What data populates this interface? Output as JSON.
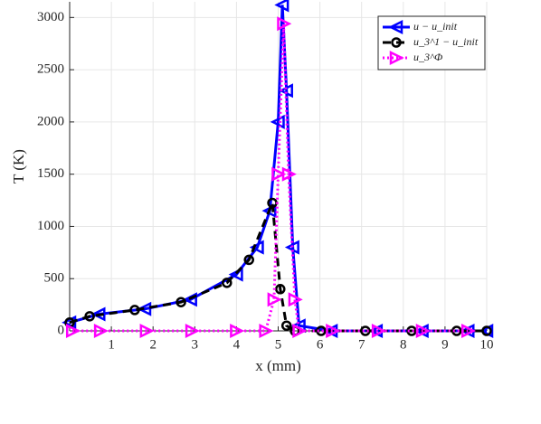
{
  "chart_data": {
    "type": "line",
    "xlabel": "x (mm)",
    "ylabel": "T (K)",
    "xlim": [
      0,
      10
    ],
    "xticks": [
      1,
      2,
      3,
      4,
      5,
      6,
      7,
      8,
      9,
      10
    ],
    "ylim": [
      0,
      3150
    ],
    "yticks": [
      0,
      500,
      1000,
      1500,
      2000,
      2500,
      3000
    ],
    "grid": true,
    "legend": "upper right",
    "series": [
      {
        "name": "u − u_init",
        "color": "#0000ff",
        "marker": "triangle-left",
        "dash": "solid",
        "x": [
          0,
          0.7,
          1.8,
          2.9,
          4.0,
          4.5,
          4.8,
          5.0,
          5.1,
          5.2,
          5.35,
          5.5,
          6.27,
          7.35,
          8.45,
          9.55,
          10
        ],
        "values": [
          80,
          160,
          210,
          300,
          540,
          800,
          1150,
          2000,
          3120,
          2300,
          800,
          50,
          0,
          0,
          0,
          0,
          0
        ]
      },
      {
        "name": "u_3^1 − u_init",
        "color": "#000000",
        "marker": "circle",
        "dash": "dashed",
        "x": [
          0,
          0.48,
          1.56,
          2.67,
          3.77,
          4.3,
          4.86,
          5.05,
          5.2,
          5.4,
          6.03,
          7.09,
          8.2,
          9.28,
          10
        ],
        "values": [
          80,
          140,
          200,
          275,
          460,
          680,
          1225,
          400,
          50,
          0,
          0,
          0,
          0,
          0,
          0
        ]
      },
      {
        "name": "u_3^Φ",
        "color": "#ff00ff",
        "marker": "triangle-right",
        "dash": "dotted",
        "x": [
          0.07,
          0.74,
          1.84,
          2.93,
          4.0,
          4.7,
          4.9,
          5.0,
          5.13,
          5.25,
          5.4,
          5.5,
          6.3,
          7.4,
          8.46,
          9.55
        ],
        "values": [
          0,
          0,
          0,
          0,
          0,
          0,
          300,
          1500,
          2940,
          1500,
          300,
          0,
          0,
          0,
          0,
          0
        ]
      }
    ]
  }
}
